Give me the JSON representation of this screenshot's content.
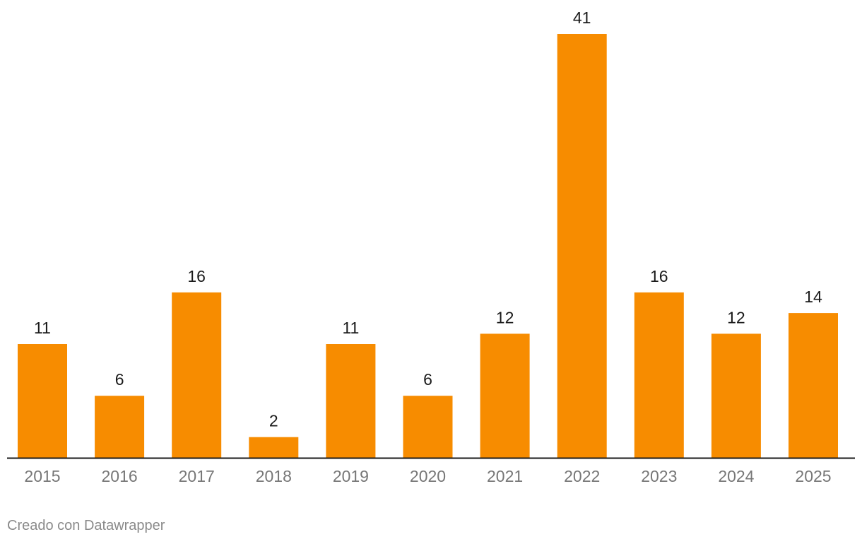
{
  "chart_data": {
    "type": "bar",
    "categories": [
      "2015",
      "2016",
      "2017",
      "2018",
      "2019",
      "2020",
      "2021",
      "2022",
      "2023",
      "2024",
      "2025"
    ],
    "values": [
      11,
      6,
      16,
      2,
      11,
      6,
      12,
      41,
      16,
      12,
      14
    ],
    "title": "",
    "xlabel": "",
    "ylabel": "",
    "ylim": [
      0,
      41
    ],
    "grid": false,
    "data_labels": true,
    "bar_color": "#f78c00",
    "baseline_color": "#1a1a1a"
  },
  "footer": {
    "credit": "Creado con Datawrapper"
  }
}
